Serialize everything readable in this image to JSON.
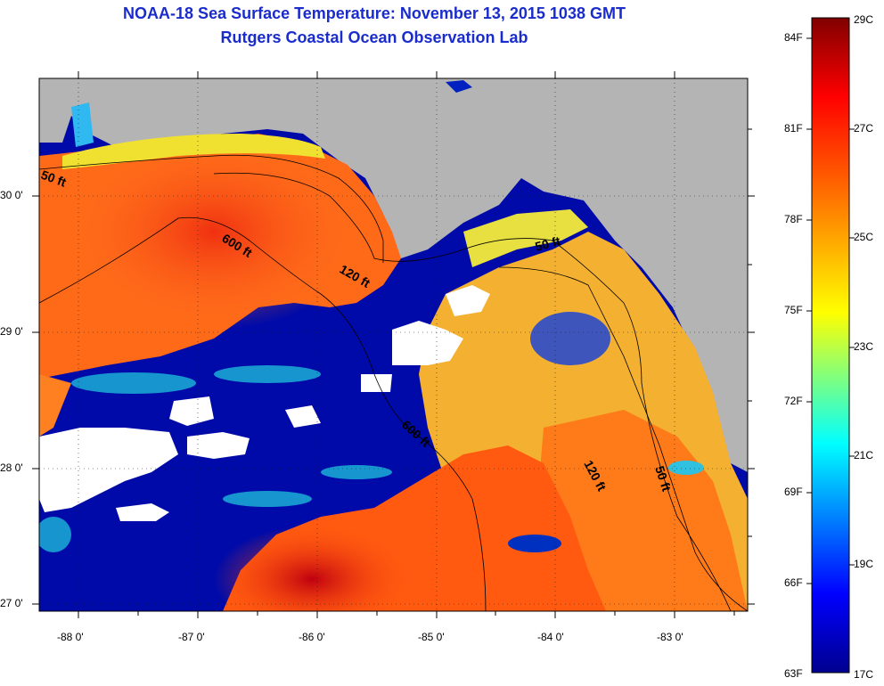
{
  "title": {
    "line1": "NOAA-18 Sea Surface Temperature:  November 13, 2015 1038 GMT",
    "line2": "Rutgers Coastal Ocean Observation Lab"
  },
  "axes": {
    "x_labels": [
      "-88 0'",
      "-87 0'",
      "-86 0'",
      "-85 0'",
      "-84 0'",
      "-83 0'"
    ],
    "y_labels": [
      "30 0'",
      "29 0'",
      "28 0'",
      "27 0'"
    ]
  },
  "contours": [
    "50 ft",
    "600 ft",
    "120 ft",
    "600 ft",
    "120 ft",
    "50 ft",
    "50 ft"
  ],
  "colorbar": {
    "f_labels": [
      "84F",
      "81F",
      "78F",
      "75F",
      "72F",
      "69F",
      "66F",
      "63F"
    ],
    "c_labels": [
      "29C",
      "27C",
      "25C",
      "23C",
      "21C",
      "19C",
      "17C"
    ]
  },
  "colors": {
    "title": "#1a2ccc",
    "land": "#b4b4b4",
    "cloud": "#ffffff"
  }
}
